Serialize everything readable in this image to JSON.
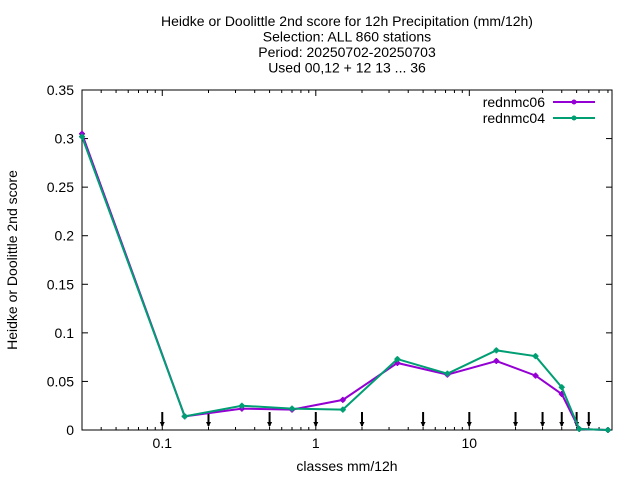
{
  "chart_data": {
    "type": "line",
    "title_lines": [
      "Heidke or Doolittle 2nd score  for 12h Precipitation (mm/12h)",
      "Selection: ALL    860 stations",
      "Period: 20250702-20250703",
      "Used 00,12 + 12 13 ... 36"
    ],
    "xlabel": "classes mm/12h",
    "ylabel": "Heidke or Doolittle 2nd score",
    "xscale": "log",
    "xlim": [
      0.03,
      85
    ],
    "ylim": [
      0,
      0.35
    ],
    "x_ticks": [
      0.1,
      1,
      10
    ],
    "x_tick_labels": [
      "0.1",
      "1",
      "10"
    ],
    "y_ticks": [
      0,
      0.05,
      0.1,
      0.15,
      0.2,
      0.25,
      0.3,
      0.35
    ],
    "y_tick_labels": [
      "0",
      "0.05",
      "0.1",
      "0.15",
      "0.2",
      "0.25",
      "0.3",
      "0.35"
    ],
    "threshold_markers": [
      0.1,
      0.2,
      0.5,
      1,
      2,
      5,
      10,
      20,
      30,
      40,
      50,
      60
    ],
    "x": [
      0.03,
      0.14,
      0.33,
      0.7,
      1.5,
      3.4,
      7.2,
      15,
      27,
      40,
      52,
      80
    ],
    "series": [
      {
        "name": "rednmc06",
        "color": "#9400d3",
        "values": [
          0.305,
          0.014,
          0.022,
          0.021,
          0.031,
          0.069,
          0.057,
          0.071,
          0.056,
          0.037,
          0.001,
          0.0
        ]
      },
      {
        "name": "rednmc04",
        "color": "#009e73",
        "values": [
          0.302,
          0.014,
          0.025,
          0.022,
          0.021,
          0.073,
          0.058,
          0.082,
          0.076,
          0.044,
          0.001,
          0.0
        ]
      }
    ],
    "legend_position": "top-right",
    "grid": false
  }
}
